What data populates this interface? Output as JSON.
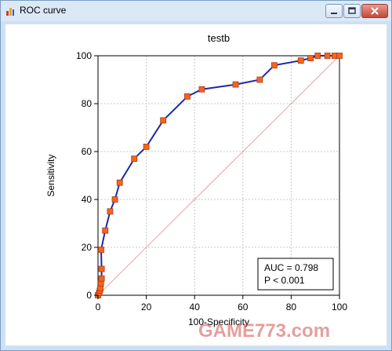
{
  "window": {
    "title": "ROC curve",
    "controls": {
      "minimize": "minimize",
      "maximize": "maximize",
      "close": "close"
    }
  },
  "watermark": "GAME773.com",
  "colors": {
    "curve": "#1c2aa8",
    "marker_fill": "#f26522",
    "marker_stroke": "#b23a0c",
    "diagonal": "#e6a3a3",
    "grid": "#c8c8c8"
  },
  "chart_data": {
    "type": "line",
    "title": "testb",
    "xlabel": "100-Specificity",
    "ylabel": "Sensitivity",
    "xlim": [
      0,
      100
    ],
    "ylim": [
      0,
      100
    ],
    "xticks": [
      0,
      20,
      40,
      60,
      80,
      100
    ],
    "yticks": [
      0,
      20,
      40,
      60,
      80,
      100
    ],
    "grid": true,
    "series": [
      {
        "points": [
          [
            0,
            0
          ],
          [
            0.5,
            1
          ],
          [
            0.8,
            2
          ],
          [
            1,
            3
          ],
          [
            1.2,
            5
          ],
          [
            1.5,
            7
          ],
          [
            1.5,
            11
          ],
          [
            1.3,
            19
          ],
          [
            3,
            27
          ],
          [
            5,
            35
          ],
          [
            7,
            40
          ],
          [
            9,
            47
          ],
          [
            15,
            57
          ],
          [
            20,
            62
          ],
          [
            27,
            73
          ],
          [
            37,
            83
          ],
          [
            43,
            86
          ],
          [
            57,
            88
          ],
          [
            67,
            90
          ],
          [
            73,
            96
          ],
          [
            84,
            98
          ],
          [
            88,
            99
          ],
          [
            91,
            100
          ],
          [
            95,
            100
          ],
          [
            98,
            100
          ],
          [
            100,
            100
          ]
        ]
      }
    ],
    "reference_line": [
      [
        0,
        0
      ],
      [
        100,
        100
      ]
    ],
    "annotation": {
      "auc": "AUC = 0.798",
      "p": "P < 0.001",
      "position": "bottom-right"
    }
  }
}
